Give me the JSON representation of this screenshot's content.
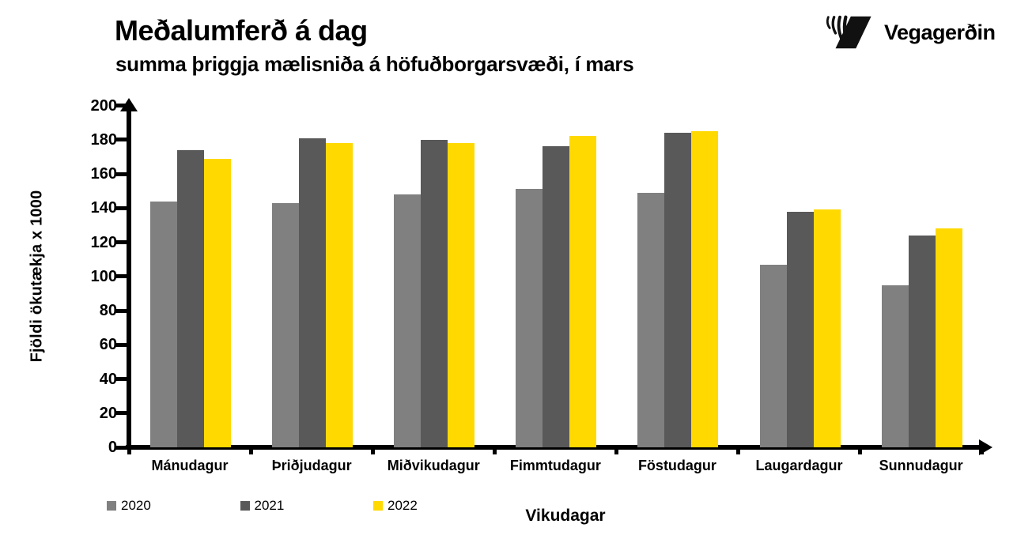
{
  "header": {
    "title": "Meðalumferð á dag",
    "subtitle": "summa þriggja mælisniða á höfuðborgarsvæði, í mars",
    "brand": "Vegagerðin"
  },
  "chart_data": {
    "type": "bar",
    "title": "Meðalumferð á dag",
    "subtitle": "summa þriggja mælisniða á höfuðborgarsvæði, í mars",
    "categories": [
      "Mánudagur",
      "Þriðjudagur",
      "Miðvikudagur",
      "Fimmtudagur",
      "Föstudagur",
      "Laugardagur",
      "Sunnudagur"
    ],
    "series": [
      {
        "name": "2020",
        "color": "#808080",
        "values": [
          144,
          143,
          148,
          151,
          149,
          107,
          95
        ]
      },
      {
        "name": "2021",
        "color": "#595959",
        "values": [
          174,
          181,
          180,
          176,
          184,
          138,
          124
        ]
      },
      {
        "name": "2022",
        "color": "#FFD900",
        "values": [
          169,
          178,
          178,
          182,
          185,
          139,
          128
        ]
      }
    ],
    "xlabel": "Vikudagar",
    "ylabel": "Fjöldi ökutækja x 1000",
    "ylim": [
      0,
      200
    ],
    "ytick_step": 20,
    "grid": false,
    "legend_position": "bottom-left",
    "axis_color": "#000000"
  }
}
